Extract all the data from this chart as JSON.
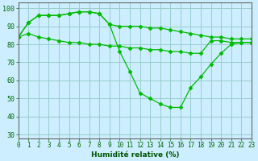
{
  "x": [
    0,
    1,
    2,
    3,
    4,
    5,
    6,
    7,
    8,
    9,
    10,
    11,
    12,
    13,
    14,
    15,
    16,
    17,
    18,
    19,
    20,
    21,
    22,
    23
  ],
  "line1": [
    84,
    86,
    84,
    83,
    82,
    81,
    81,
    80,
    80,
    79,
    79,
    78,
    78,
    77,
    77,
    76,
    76,
    75,
    75,
    82,
    82,
    81,
    81,
    81
  ],
  "line2": [
    84,
    92,
    96,
    96,
    96,
    97,
    98,
    98,
    97,
    91,
    90,
    90,
    90,
    89,
    89,
    88,
    87,
    86,
    85,
    84,
    84,
    83,
    83,
    83
  ],
  "line3": [
    84,
    92,
    96,
    96,
    96,
    97,
    98,
    98,
    97,
    91,
    76,
    65,
    53,
    50,
    47,
    45,
    45,
    56,
    62,
    69,
    75,
    80,
    81,
    81
  ],
  "line_color": "#00bb00",
  "bg_color": "#cceeff",
  "grid_color": "#99cccc",
  "xlabel": "Humidité relative (%)",
  "ylim": [
    28,
    103
  ],
  "xlim": [
    0,
    23
  ],
  "yticks": [
    30,
    40,
    50,
    60,
    70,
    80,
    90,
    100
  ],
  "xticks": [
    0,
    1,
    2,
    3,
    4,
    5,
    6,
    7,
    8,
    9,
    10,
    11,
    12,
    13,
    14,
    15,
    16,
    17,
    18,
    19,
    20,
    21,
    22,
    23
  ],
  "xlabel_fontsize": 6.5,
  "tick_fontsize": 5.5
}
